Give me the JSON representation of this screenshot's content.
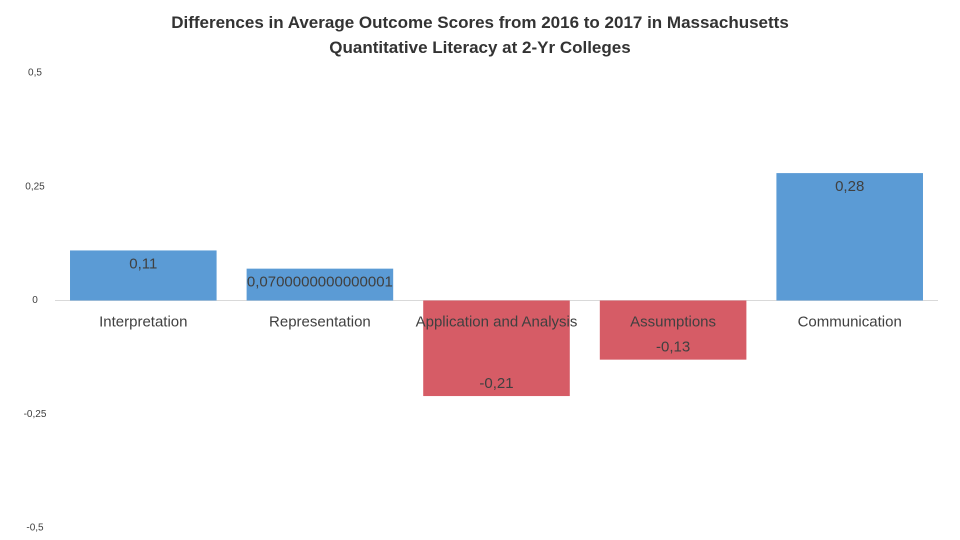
{
  "chart_data": {
    "type": "bar",
    "title": "Differences in Average Outcome Scores from 2016 to 2017 in Massachusetts Quantitative Literacy at 2-Yr Colleges",
    "categories": [
      "Interpretation",
      "Representation",
      "Application and Analysis",
      "Assumptions",
      "Communication"
    ],
    "values": [
      0.11,
      0.0700000000000001,
      -0.21,
      -0.13,
      0.28
    ],
    "value_labels": [
      "0,11",
      "0,0700000000000001",
      "-0,21",
      "-0,13",
      "0,28"
    ],
    "colors": [
      "#5b9bd5",
      "#5b9bd5",
      "#d65c66",
      "#d65c66",
      "#5b9bd5"
    ],
    "ylim": [
      -0.5,
      0.5
    ],
    "yticks": [
      {
        "value": -0.5,
        "label": "-0,5"
      },
      {
        "value": -0.25,
        "label": "-0,25"
      },
      0,
      {
        "value": 0.25,
        "label": "0,25"
      },
      {
        "value": 0.5,
        "label": "0,5"
      }
    ],
    "grid": false
  }
}
